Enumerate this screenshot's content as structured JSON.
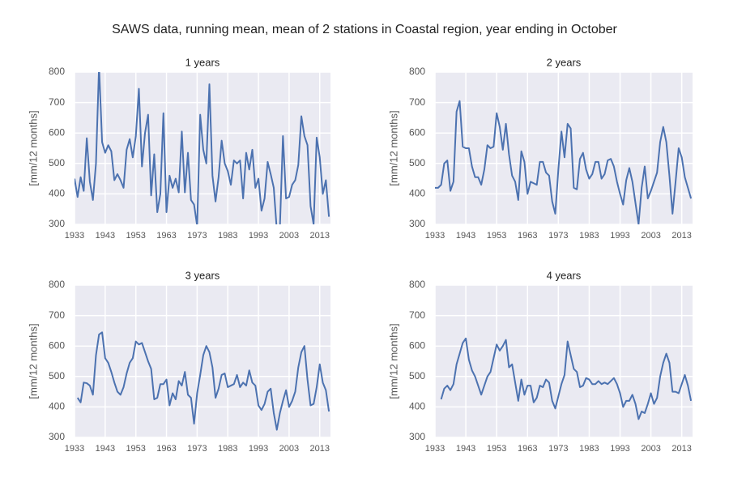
{
  "title": "SAWS data, running mean, mean of 2 stations in Coastal region, year ending in October",
  "chart_data": [
    {
      "type": "line",
      "title": "1 years",
      "ylabel": "[mm/12 months]",
      "x": [
        1933,
        1934,
        1935,
        1936,
        1937,
        1938,
        1939,
        1940,
        1941,
        1942,
        1943,
        1944,
        1945,
        1946,
        1947,
        1948,
        1949,
        1950,
        1951,
        1952,
        1953,
        1954,
        1955,
        1956,
        1957,
        1958,
        1959,
        1960,
        1961,
        1962,
        1963,
        1964,
        1965,
        1966,
        1967,
        1968,
        1969,
        1970,
        1971,
        1972,
        1973,
        1974,
        1975,
        1976,
        1977,
        1978,
        1979,
        1980,
        1981,
        1982,
        1983,
        1984,
        1985,
        1986,
        1987,
        1988,
        1989,
        1990,
        1991,
        1992,
        1993,
        1994,
        1995,
        1996,
        1997,
        1998,
        1999,
        2000,
        2001,
        2002,
        2003,
        2004,
        2005,
        2006,
        2007,
        2008,
        2009,
        2010,
        2011,
        2012,
        2013,
        2014,
        2015,
        2016
      ],
      "series": [
        {
          "color": "#4c72b0",
          "values": [
            450,
            390,
            455,
            410,
            583,
            440,
            380,
            500,
            820,
            570,
            535,
            560,
            540,
            445,
            465,
            445,
            420,
            545,
            580,
            520,
            590,
            745,
            490,
            600,
            660,
            395,
            530,
            340,
            400,
            665,
            340,
            460,
            420,
            450,
            405,
            605,
            405,
            535,
            380,
            365,
            295,
            660,
            545,
            500,
            760,
            460,
            375,
            455,
            575,
            500,
            475,
            430,
            510,
            500,
            510,
            385,
            535,
            480,
            545,
            420,
            450,
            345,
            385,
            505,
            465,
            420,
            280,
            290,
            590,
            385,
            390,
            430,
            445,
            495,
            655,
            590,
            560,
            360,
            300,
            585,
            520,
            400,
            445,
            325
          ]
        }
      ],
      "xlim": [
        1933,
        2016.5
      ],
      "ylim": [
        300,
        800
      ],
      "xticks": [
        1933,
        1943,
        1953,
        1963,
        1973,
        1983,
        1993,
        2003,
        2013
      ],
      "yticks": [
        300,
        400,
        500,
        600,
        700,
        800
      ],
      "grid": true
    },
    {
      "type": "line",
      "title": "2 years",
      "ylabel": "[mm/12 months]",
      "x": [
        1933,
        1934,
        1935,
        1936,
        1937,
        1938,
        1939,
        1940,
        1941,
        1942,
        1943,
        1944,
        1945,
        1946,
        1947,
        1948,
        1949,
        1950,
        1951,
        1952,
        1953,
        1954,
        1955,
        1956,
        1957,
        1958,
        1959,
        1960,
        1961,
        1962,
        1963,
        1964,
        1965,
        1966,
        1967,
        1968,
        1969,
        1970,
        1971,
        1972,
        1973,
        1974,
        1975,
        1976,
        1977,
        1978,
        1979,
        1980,
        1981,
        1982,
        1983,
        1984,
        1985,
        1986,
        1987,
        1988,
        1989,
        1990,
        1991,
        1992,
        1993,
        1994,
        1995,
        1996,
        1997,
        1998,
        1999,
        2000,
        2001,
        2002,
        2003,
        2004,
        2005,
        2006,
        2007,
        2008,
        2009,
        2010,
        2011,
        2012,
        2013,
        2014,
        2015,
        2016
      ],
      "series": [
        {
          "color": "#4c72b0",
          "values": [
            420,
            420,
            430,
            500,
            510,
            410,
            440,
            670,
            705,
            555,
            550,
            550,
            490,
            455,
            455,
            430,
            480,
            560,
            550,
            555,
            665,
            620,
            545,
            630,
            530,
            460,
            440,
            380,
            540,
            505,
            400,
            440,
            435,
            430,
            505,
            505,
            470,
            460,
            375,
            335,
            480,
            605,
            520,
            630,
            615,
            420,
            415,
            515,
            535,
            480,
            450,
            465,
            505,
            505,
            450,
            465,
            510,
            515,
            490,
            440,
            400,
            365,
            445,
            485,
            440,
            370,
            300,
            420,
            490,
            385,
            410,
            440,
            470,
            570,
            620,
            570,
            460,
            335,
            440,
            550,
            520,
            455,
            420,
            385
          ]
        }
      ],
      "xlim": [
        1933,
        2016.5
      ],
      "ylim": [
        300,
        800
      ],
      "xticks": [
        1933,
        1943,
        1953,
        1963,
        1973,
        1983,
        1993,
        2003,
        2013
      ],
      "yticks": [
        300,
        400,
        500,
        600,
        700,
        800
      ],
      "grid": true
    },
    {
      "type": "line",
      "title": "3 years",
      "ylabel": "[mm/12 months]",
      "x": [
        1933,
        1934,
        1935,
        1936,
        1937,
        1938,
        1939,
        1940,
        1941,
        1942,
        1943,
        1944,
        1945,
        1946,
        1947,
        1948,
        1949,
        1950,
        1951,
        1952,
        1953,
        1954,
        1955,
        1956,
        1957,
        1958,
        1959,
        1960,
        1961,
        1962,
        1963,
        1964,
        1965,
        1966,
        1967,
        1968,
        1969,
        1970,
        1971,
        1972,
        1973,
        1974,
        1975,
        1976,
        1977,
        1978,
        1979,
        1980,
        1981,
        1982,
        1983,
        1984,
        1985,
        1986,
        1987,
        1988,
        1989,
        1990,
        1991,
        1992,
        1993,
        1994,
        1995,
        1996,
        1997,
        1998,
        1999,
        2000,
        2001,
        2002,
        2003,
        2004,
        2005,
        2006,
        2007,
        2008,
        2009,
        2010,
        2011,
        2012,
        2013,
        2014,
        2015,
        2016
      ],
      "series": [
        {
          "color": "#4c72b0",
          "values": [
            null,
            430,
            415,
            480,
            478,
            470,
            440,
            570,
            638,
            645,
            560,
            545,
            515,
            480,
            450,
            440,
            465,
            510,
            545,
            560,
            615,
            605,
            610,
            580,
            550,
            525,
            425,
            430,
            475,
            475,
            490,
            405,
            445,
            425,
            485,
            470,
            515,
            440,
            430,
            345,
            445,
            505,
            570,
            600,
            580,
            530,
            430,
            460,
            505,
            510,
            465,
            470,
            475,
            505,
            465,
            480,
            470,
            520,
            480,
            470,
            405,
            390,
            410,
            450,
            460,
            380,
            325,
            380,
            420,
            455,
            400,
            420,
            450,
            530,
            580,
            600,
            490,
            405,
            410,
            465,
            540,
            480,
            455,
            385
          ]
        }
      ],
      "xlim": [
        1933,
        2016.5
      ],
      "ylim": [
        300,
        800
      ],
      "xticks": [
        1933,
        1943,
        1953,
        1963,
        1973,
        1983,
        1993,
        2003,
        2013
      ],
      "yticks": [
        300,
        400,
        500,
        600,
        700,
        800
      ],
      "grid": true
    },
    {
      "type": "line",
      "title": "4 years",
      "ylabel": "[mm/12 months]",
      "x": [
        1933,
        1934,
        1935,
        1936,
        1937,
        1938,
        1939,
        1940,
        1941,
        1942,
        1943,
        1944,
        1945,
        1946,
        1947,
        1948,
        1949,
        1950,
        1951,
        1952,
        1953,
        1954,
        1955,
        1956,
        1957,
        1958,
        1959,
        1960,
        1961,
        1962,
        1963,
        1964,
        1965,
        1966,
        1967,
        1968,
        1969,
        1970,
        1971,
        1972,
        1973,
        1974,
        1975,
        1976,
        1977,
        1978,
        1979,
        1980,
        1981,
        1982,
        1983,
        1984,
        1985,
        1986,
        1987,
        1988,
        1989,
        1990,
        1991,
        1992,
        1993,
        1994,
        1995,
        1996,
        1997,
        1998,
        1999,
        2000,
        2001,
        2002,
        2003,
        2004,
        2005,
        2006,
        2007,
        2008,
        2009,
        2010,
        2011,
        2012,
        2013,
        2014,
        2015,
        2016
      ],
      "series": [
        {
          "color": "#4c72b0",
          "values": [
            null,
            null,
            425,
            460,
            470,
            455,
            475,
            540,
            575,
            610,
            625,
            555,
            520,
            500,
            470,
            440,
            470,
            500,
            515,
            560,
            605,
            585,
            600,
            620,
            530,
            540,
            480,
            420,
            490,
            440,
            470,
            470,
            415,
            430,
            470,
            465,
            490,
            480,
            420,
            395,
            435,
            475,
            505,
            615,
            570,
            525,
            515,
            465,
            470,
            495,
            490,
            475,
            475,
            485,
            475,
            480,
            475,
            485,
            495,
            475,
            445,
            400,
            420,
            420,
            440,
            410,
            360,
            385,
            380,
            410,
            445,
            410,
            430,
            500,
            545,
            575,
            545,
            450,
            450,
            445,
            475,
            505,
            470,
            420
          ]
        }
      ],
      "xlim": [
        1933,
        2016.5
      ],
      "ylim": [
        300,
        800
      ],
      "xticks": [
        1933,
        1943,
        1953,
        1963,
        1973,
        1983,
        1993,
        2003,
        2013
      ],
      "yticks": [
        300,
        400,
        500,
        600,
        700,
        800
      ],
      "grid": true
    }
  ]
}
